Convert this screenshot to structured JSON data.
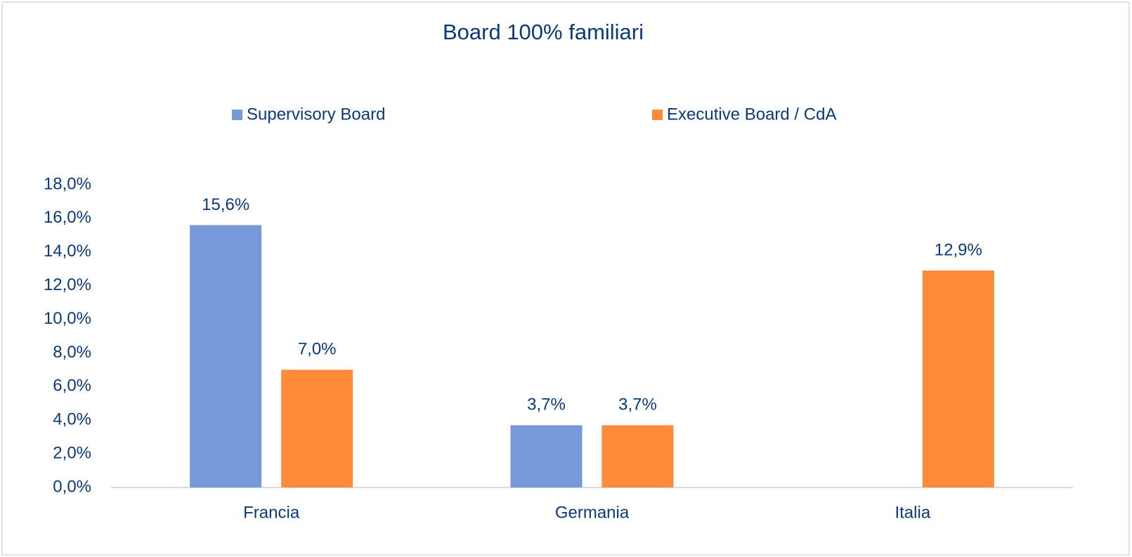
{
  "chart_data": {
    "type": "bar",
    "title": "Board 100% familiari",
    "categories": [
      "Francia",
      "Germania",
      "Italia"
    ],
    "series": [
      {
        "name": "Supervisory Board",
        "color": "#7799d8",
        "values": [
          15.6,
          3.7,
          null
        ],
        "value_labels": [
          "15,6%",
          "3,7%",
          null
        ]
      },
      {
        "name": "Executive Board / CdA",
        "color": "#ff8a3a",
        "values": [
          7.0,
          3.7,
          12.9
        ],
        "value_labels": [
          "7,0%",
          "3,7%",
          "12,9%"
        ]
      }
    ],
    "ylim": [
      0,
      18
    ],
    "yticks": [
      {
        "value": 0,
        "label": "0,0%"
      },
      {
        "value": 2,
        "label": "2,0%"
      },
      {
        "value": 4,
        "label": "4,0%"
      },
      {
        "value": 6,
        "label": "6,0%"
      },
      {
        "value": 8,
        "label": "8,0%"
      },
      {
        "value": 10,
        "label": "10,0%"
      },
      {
        "value": 12,
        "label": "12,0%"
      },
      {
        "value": 14,
        "label": "14,0%"
      },
      {
        "value": 16,
        "label": "16,0%"
      },
      {
        "value": 18,
        "label": "18,0%"
      }
    ],
    "grid": false,
    "legend": "top"
  }
}
